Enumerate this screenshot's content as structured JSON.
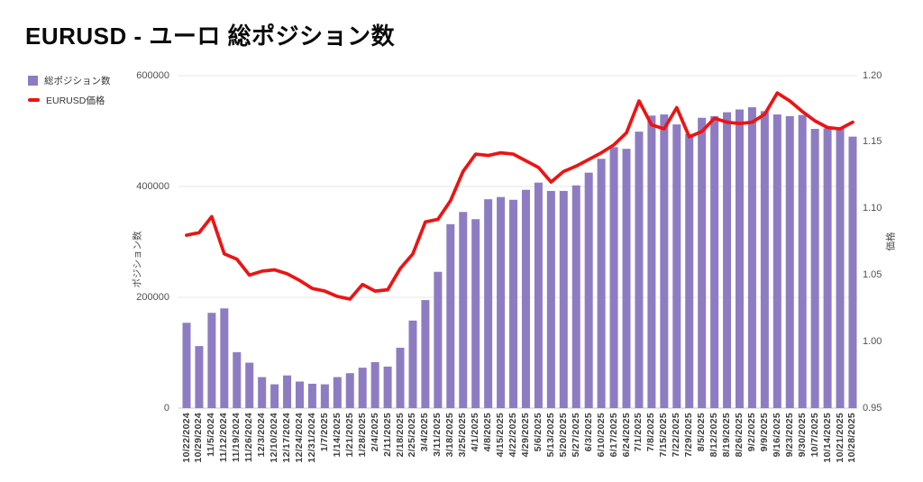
{
  "title": "EURUSD - ユーロ 総ポジション数",
  "legend": {
    "items": [
      {
        "label": "総ポジション数",
        "marker": "purple-square"
      },
      {
        "label": "EURUSD価格",
        "marker": "red-line"
      }
    ]
  },
  "colors": {
    "bar": "#8e7cc3",
    "line": "#ed1313",
    "grid": "#e7e7e7",
    "axis_line": "#c8c8c8",
    "tick_text": "#505050",
    "date_text": "#3d3d3d"
  },
  "chart_data": {
    "type": "bar",
    "title": "EURUSD - ユーロ 総ポジション数",
    "categories": [
      "10/22/2024",
      "10/29/2024",
      "11/5/2024",
      "11/12/2024",
      "11/19/2024",
      "11/26/2024",
      "12/3/2024",
      "12/10/2024",
      "12/17/2024",
      "12/24/2024",
      "12/31/2024",
      "1/7/2025",
      "1/14/2025",
      "1/21/2025",
      "1/28/2025",
      "2/4/2025",
      "2/11/2025",
      "2/18/2025",
      "2/25/2025",
      "3/4/2025",
      "3/11/2025",
      "3/18/2025",
      "3/25/2025",
      "4/1/2025",
      "4/8/2025",
      "4/15/2025",
      "4/22/2025",
      "4/29/2025",
      "5/6/2025",
      "5/13/2025",
      "5/20/2025",
      "5/27/2025",
      "6/3/2025",
      "6/10/2025",
      "6/17/2025",
      "6/24/2025",
      "7/1/2025",
      "7/8/2025",
      "7/15/2025",
      "7/22/2025",
      "7/29/2025",
      "8/5/2025",
      "8/12/2025",
      "8/19/2025",
      "8/26/2025",
      "9/2/2025",
      "9/9/2025",
      "9/16/2025",
      "9/23/2025",
      "9/30/2025",
      "10/7/2025",
      "10/14/2025",
      "10/21/2025",
      "10/28/2025"
    ],
    "series": [
      {
        "name": "総ポジション数",
        "type": "bar",
        "axis": "left",
        "values": [
          154000,
          112000,
          172000,
          180000,
          101000,
          82000,
          56000,
          43000,
          59000,
          48000,
          44000,
          43000,
          56000,
          63000,
          73000,
          83000,
          75000,
          109000,
          158000,
          195000,
          246000,
          332000,
          354000,
          341000,
          377000,
          381000,
          376000,
          394000,
          407000,
          392000,
          392000,
          402000,
          425000,
          450000,
          471000,
          468000,
          499000,
          528000,
          530000,
          512000,
          495000,
          524000,
          527000,
          534000,
          539000,
          543000,
          536000,
          530000,
          527000,
          529000,
          504000,
          505000,
          505000,
          490000
        ]
      },
      {
        "name": "EURUSD価格",
        "type": "line",
        "axis": "right",
        "values": [
          1.08,
          1.082,
          1.094,
          1.066,
          1.062,
          1.05,
          1.053,
          1.054,
          1.051,
          1.046,
          1.04,
          1.038,
          1.034,
          1.032,
          1.043,
          1.038,
          1.039,
          1.055,
          1.066,
          1.09,
          1.092,
          1.106,
          1.128,
          1.141,
          1.14,
          1.142,
          1.141,
          1.136,
          1.131,
          1.12,
          1.128,
          1.132,
          1.137,
          1.142,
          1.148,
          1.157,
          1.181,
          1.163,
          1.16,
          1.176,
          1.154,
          1.158,
          1.168,
          1.165,
          1.164,
          1.165,
          1.171,
          1.187,
          1.181,
          1.173,
          1.166,
          1.161,
          1.16,
          1.165
        ]
      }
    ],
    "left_axis": {
      "label": "ポジション数",
      "range": [
        0,
        600000
      ],
      "ticks": [
        {
          "value": 0,
          "label": "0"
        },
        {
          "value": 200000,
          "label": "200000"
        },
        {
          "value": 400000,
          "label": "400000"
        },
        {
          "value": 600000,
          "label": "600000"
        }
      ]
    },
    "right_axis": {
      "label": "価格",
      "range": [
        0.95,
        1.2
      ],
      "ticks": [
        {
          "value": 0.95,
          "label": "0.95"
        },
        {
          "value": 1.0,
          "label": "1.00"
        },
        {
          "value": 1.05,
          "label": "1.05"
        },
        {
          "value": 1.1,
          "label": "1.10"
        },
        {
          "value": 1.15,
          "label": "1.15"
        },
        {
          "value": 1.2,
          "label": "1.20"
        }
      ]
    },
    "grid": true,
    "legend_position": "top-left"
  }
}
